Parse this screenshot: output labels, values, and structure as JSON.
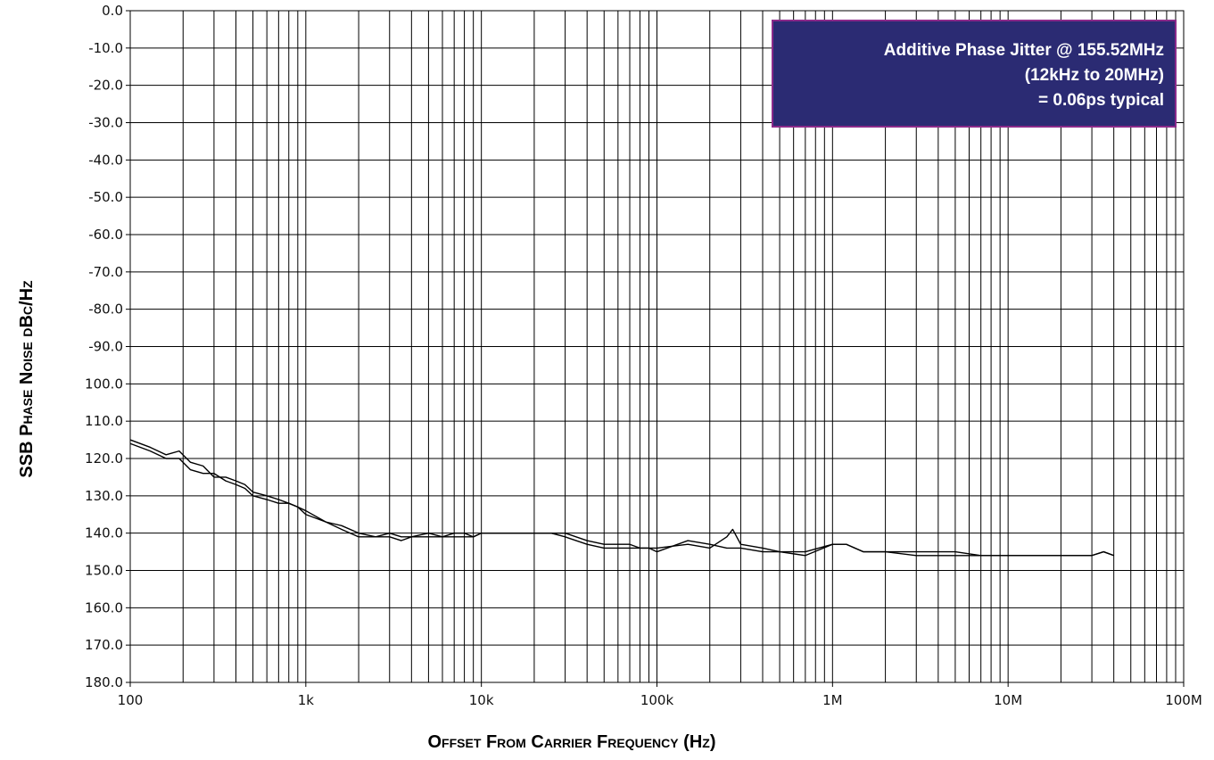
{
  "chart_data": {
    "type": "line",
    "xscale": "log",
    "xlim": [
      100,
      100000000
    ],
    "ylim": [
      0,
      -180
    ],
    "grid": true,
    "xlabel": "Offset From Carrier Frequency (Hz)",
    "ylabel": "SSB Phase Noise dBc/Hz",
    "x_ticks": [
      {
        "value": 100,
        "label": "100"
      },
      {
        "value": 1000,
        "label": "1k"
      },
      {
        "value": 10000,
        "label": "10k"
      },
      {
        "value": 100000,
        "label": "100k"
      },
      {
        "value": 1000000,
        "label": "1M"
      },
      {
        "value": 10000000,
        "label": "10M"
      },
      {
        "value": 100000000,
        "label": "100M"
      }
    ],
    "y_ticks": [
      {
        "value": 0,
        "label": "0.0"
      },
      {
        "value": -10,
        "label": "-10.0"
      },
      {
        "value": -20,
        "label": "-20.0"
      },
      {
        "value": -30,
        "label": "-30.0"
      },
      {
        "value": -40,
        "label": "-40.0"
      },
      {
        "value": -50,
        "label": "-50.0"
      },
      {
        "value": -60,
        "label": "-60.0"
      },
      {
        "value": -70,
        "label": "-70.0"
      },
      {
        "value": -80,
        "label": "-80.0"
      },
      {
        "value": -90,
        "label": "-90.0"
      },
      {
        "value": -100,
        "label": "100.0"
      },
      {
        "value": -110,
        "label": "110.0"
      },
      {
        "value": -120,
        "label": "120.0"
      },
      {
        "value": -130,
        "label": "130.0"
      },
      {
        "value": -140,
        "label": "140.0"
      },
      {
        "value": -150,
        "label": "150.0"
      },
      {
        "value": -160,
        "label": "160.0"
      },
      {
        "value": -170,
        "label": "170.0"
      },
      {
        "value": -180,
        "label": "180.0"
      }
    ],
    "series": [
      {
        "x": [
          100,
          130,
          160,
          190,
          220,
          260,
          300,
          350,
          400,
          450,
          500,
          600,
          700,
          800,
          900,
          1000,
          1300,
          1600,
          2000,
          2500,
          3000,
          3500,
          4000,
          5000,
          6000,
          7000,
          8000,
          9000,
          10000,
          15000,
          20000,
          25000,
          30000,
          40000,
          50000,
          60000,
          70000,
          80000,
          90000,
          100000,
          150000,
          200000,
          250000,
          270000,
          300000,
          400000,
          500000,
          700000,
          1000000,
          1200000,
          1500000,
          2000000,
          3000000,
          5000000,
          7000000,
          10000000,
          15000000,
          20000000,
          25000000,
          30000000,
          35000000,
          40000000
        ],
        "y": [
          -115,
          -117,
          -119,
          -118,
          -121,
          -122,
          -125,
          -125,
          -126,
          -127,
          -129,
          -130,
          -131,
          -132,
          -133,
          -134,
          -137,
          -138,
          -140,
          -141,
          -140,
          -141,
          -141,
          -140,
          -141,
          -140,
          -140,
          -141,
          -140,
          -140,
          -140,
          -140,
          -140,
          -142,
          -143,
          -143,
          -143,
          -144,
          -144,
          -144,
          -143,
          -144,
          -141,
          -139,
          -143,
          -144,
          -145,
          -145,
          -143,
          -143,
          -145,
          -145,
          -145,
          -145,
          -146,
          -146,
          -146,
          -146,
          -146,
          -146,
          -145,
          -146
        ]
      },
      {
        "x": [
          100,
          130,
          160,
          190,
          220,
          260,
          300,
          350,
          400,
          450,
          500,
          600,
          700,
          800,
          900,
          1000,
          1300,
          1600,
          2000,
          2500,
          3000,
          3500,
          4000,
          5000,
          6000,
          7000,
          8000,
          9000,
          10000,
          15000,
          20000,
          25000,
          30000,
          40000,
          50000,
          60000,
          70000,
          80000,
          90000,
          100000,
          150000,
          200000,
          250000,
          270000,
          300000,
          400000,
          500000,
          700000,
          1000000,
          1200000,
          1500000,
          2000000,
          3000000,
          5000000,
          7000000,
          10000000,
          15000000,
          20000000,
          25000000,
          30000000,
          35000000,
          40000000
        ],
        "y": [
          -116,
          -118,
          -120,
          -120,
          -123,
          -124,
          -124,
          -126,
          -127,
          -128,
          -130,
          -131,
          -132,
          -132,
          -133,
          -135,
          -137,
          -139,
          -141,
          -141,
          -141,
          -142,
          -141,
          -141,
          -141,
          -141,
          -141,
          -141,
          -140,
          -140,
          -140,
          -140,
          -141,
          -143,
          -144,
          -144,
          -144,
          -144,
          -144,
          -145,
          -142,
          -143,
          -144,
          -144,
          -144,
          -145,
          -145,
          -146,
          -143,
          -143,
          -145,
          -145,
          -146,
          -146,
          -146,
          -146,
          -146,
          -146,
          -146,
          -146,
          -145,
          -146
        ]
      }
    ],
    "annotation": {
      "lines": [
        "Additive Phase Jitter @ 155.52MHz",
        "(12kHz to 20MHz)",
        "= 0.06ps typical"
      ],
      "background": "#2b2b73",
      "border": "#8a2a8a"
    }
  }
}
